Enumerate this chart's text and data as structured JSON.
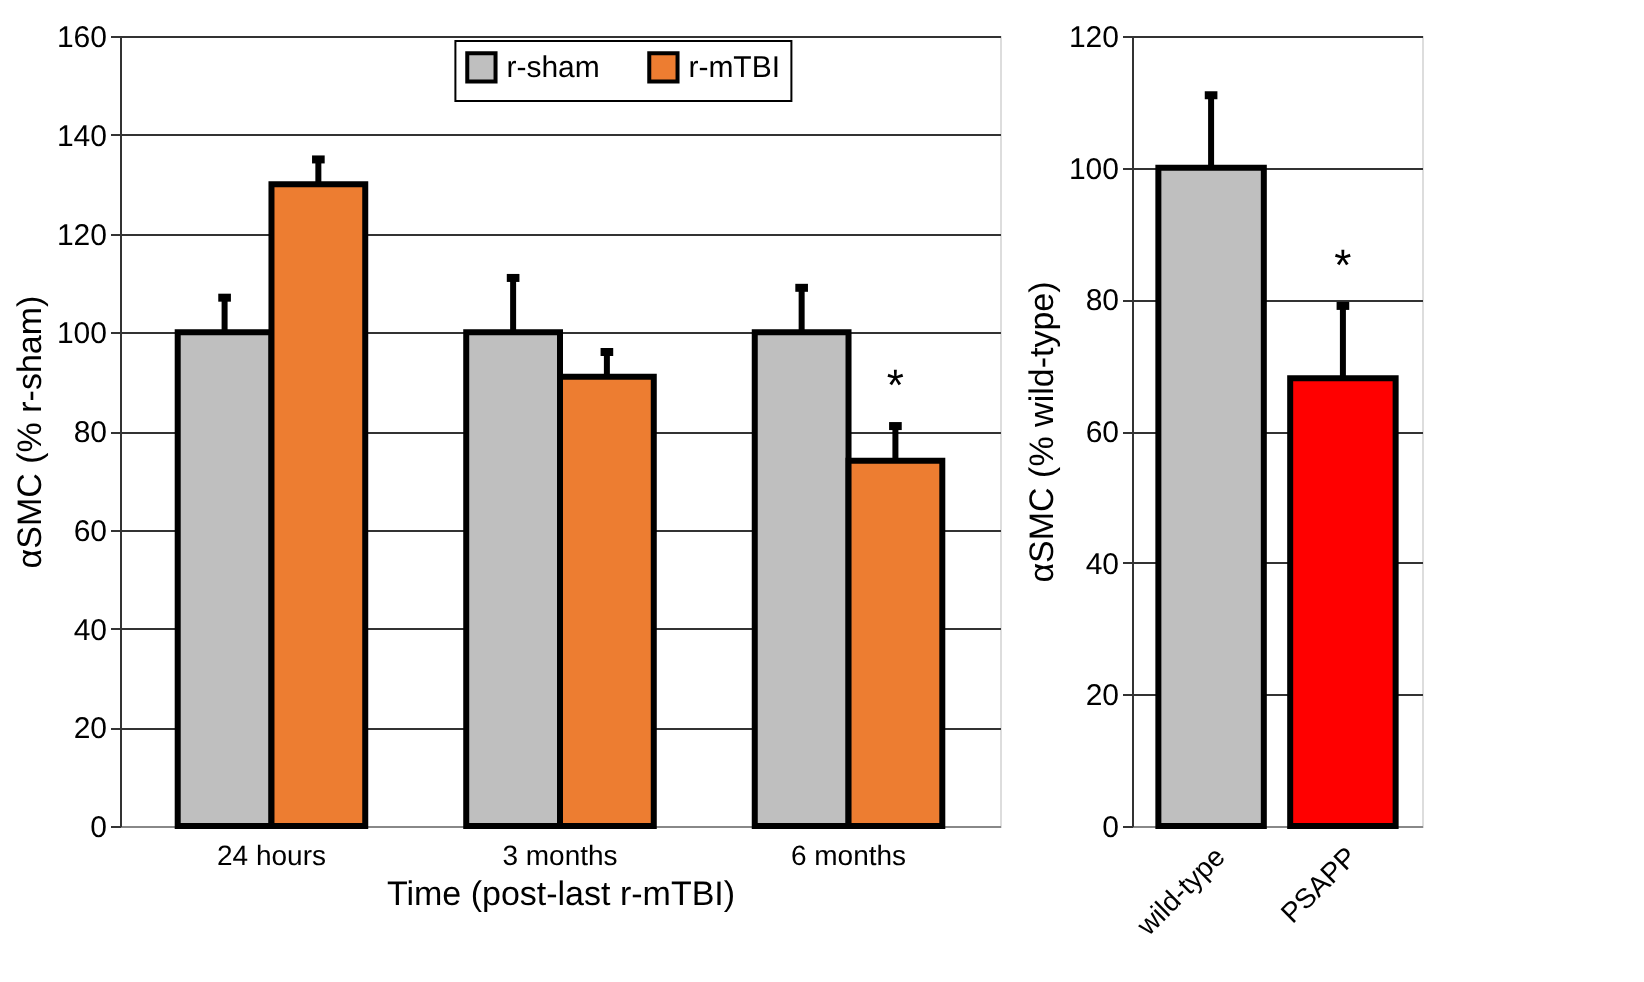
{
  "chart_data": [
    {
      "type": "bar",
      "xlabel": "Time (post-last r-mTBI)",
      "ylabel": "αSMC (% r-sham)",
      "categories": [
        "24 hours",
        "3 months",
        "6 months"
      ],
      "ylim": [
        0,
        160
      ],
      "yticks": [
        0,
        20,
        40,
        60,
        80,
        100,
        120,
        140,
        160
      ],
      "grid": "y",
      "legend": "top",
      "series": [
        {
          "name": "r-sham",
          "color": "#bfbfbf",
          "values": [
            100,
            100,
            100
          ],
          "errors": [
            [
              100,
              107
            ],
            [
              100,
              111
            ],
            [
              100,
              109
            ]
          ]
        },
        {
          "name": "r-mTBI",
          "color": "#ed7d31",
          "values": [
            130,
            91,
            74
          ],
          "errors": [
            [
              130,
              135
            ],
            [
              91,
              96
            ],
            [
              74,
              81
            ]
          ]
        }
      ],
      "annotations": [
        "*"
      ]
    },
    {
      "type": "bar",
      "ylabel": "αSMC (% wild-type)",
      "categories": [
        "wild-type",
        "PSAPP"
      ],
      "values": [
        100,
        68
      ],
      "colors": [
        "#bfbfbf",
        "#ff0000"
      ],
      "errors": [
        [
          100,
          111
        ],
        [
          68,
          79
        ]
      ],
      "ylim": [
        0,
        120
      ],
      "yticks": [
        0,
        20,
        40,
        60,
        80,
        100,
        120
      ],
      "grid": "y",
      "annotations": [
        "*"
      ]
    }
  ]
}
